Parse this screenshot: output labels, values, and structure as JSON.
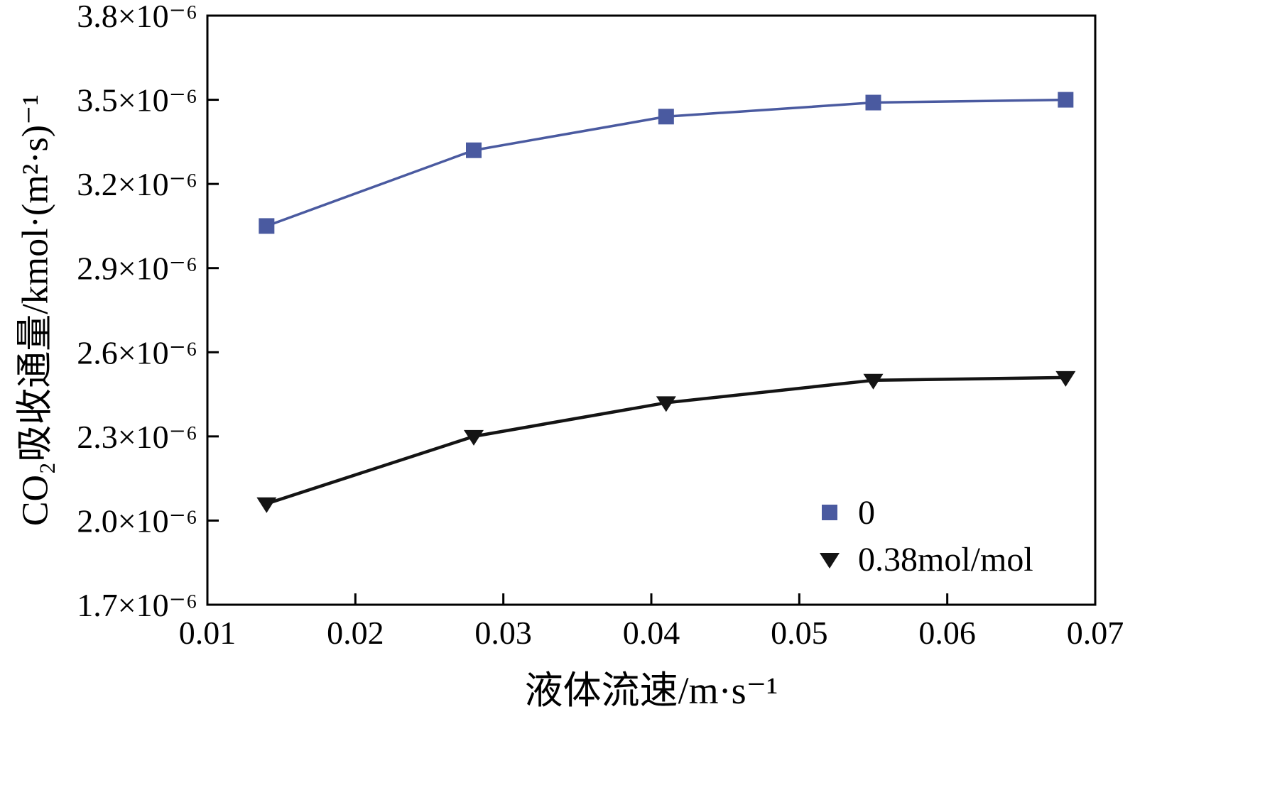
{
  "chart_data": {
    "type": "line",
    "title": "",
    "xlabel": "液体流速/m·s⁻¹",
    "ylabel": "CO₂吸收通量/kmol·(m²·s)⁻¹",
    "xlim": [
      0.01,
      0.07
    ],
    "ylim": [
      1.7e-06,
      3.8e-06
    ],
    "y_unit": "×10⁻⁶",
    "grid": false,
    "x_ticks": [
      "0.01",
      "0.02",
      "0.03",
      "0.04",
      "0.05",
      "0.06",
      "0.07"
    ],
    "x_tick_values": [
      0.01,
      0.02,
      0.03,
      0.04,
      0.05,
      0.06,
      0.07
    ],
    "y_ticks": [
      "1.7×10⁻⁶",
      "2.0×10⁻⁶",
      "2.3×10⁻⁶",
      "2.6×10⁻⁶",
      "2.9×10⁻⁶",
      "3.2×10⁻⁶",
      "3.5×10⁻⁶",
      "3.8×10⁻⁶"
    ],
    "y_tick_values": [
      1.7,
      2.0,
      2.3,
      2.6,
      2.9,
      3.2,
      3.5,
      3.8
    ],
    "legend": {
      "position": "lower-right",
      "entries": [
        {
          "label": "0",
          "marker": "square",
          "color": "#4a5aa0"
        },
        {
          "label": "0.38mol/mol",
          "marker": "triangle-down",
          "color": "#141414"
        }
      ]
    },
    "series": [
      {
        "name": "0",
        "marker": "square",
        "color": "#4a5aa0",
        "x": [
          0.014,
          0.028,
          0.041,
          0.055,
          0.068
        ],
        "y_e6": [
          3.05,
          3.32,
          3.44,
          3.49,
          3.5
        ]
      },
      {
        "name": "0.38mol/mol",
        "marker": "triangle-down",
        "color": "#141414",
        "x": [
          0.014,
          0.028,
          0.041,
          0.055,
          0.068
        ],
        "y_e6": [
          2.06,
          2.3,
          2.42,
          2.5,
          2.51
        ]
      }
    ]
  }
}
